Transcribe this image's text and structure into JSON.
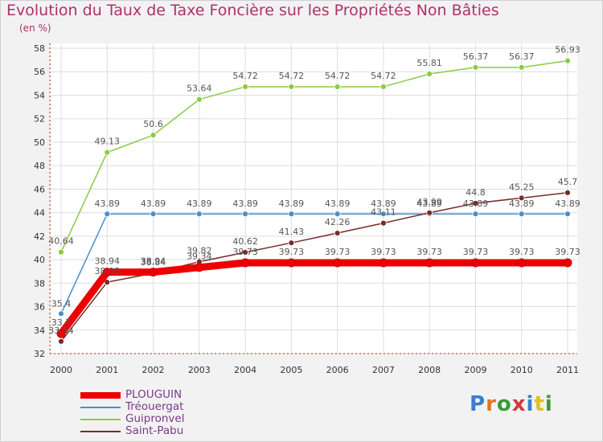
{
  "title": "Evolution du Taux de Taxe Foncière sur les Propriétés Non Bâties",
  "unit_label": "(en %)",
  "logo_text": "Proxiti",
  "chart_data": {
    "type": "line",
    "title": "Evolution du Taux de Taxe Foncière sur les Propriétés Non Bâties",
    "ylabel": "(en %)",
    "categories": [
      "2000",
      "2001",
      "2002",
      "2003",
      "2004",
      "2005",
      "2006",
      "2007",
      "2008",
      "2009",
      "2010",
      "2011"
    ],
    "ylim": [
      32,
      58
    ],
    "yticks": [
      32,
      34,
      36,
      38,
      40,
      42,
      44,
      46,
      48,
      50,
      52,
      54,
      56,
      58
    ],
    "grid": true,
    "legend_position": "bottom-left",
    "series": [
      {
        "name": "Tréouergat",
        "color": "#4a8ec8",
        "values": [
          35.4,
          43.89,
          43.89,
          43.89,
          43.89,
          43.89,
          43.89,
          43.89,
          43.89,
          43.89,
          43.89,
          43.89
        ]
      },
      {
        "name": "Guipronvel",
        "color": "#88cc44",
        "values": [
          40.64,
          49.13,
          50.6,
          53.64,
          54.72,
          54.72,
          54.72,
          54.72,
          55.81,
          56.37,
          56.37,
          56.93
        ]
      },
      {
        "name": "Saint-Pabu",
        "color": "#7a2a2a",
        "values": [
          33.04,
          38.08,
          38.84,
          39.82,
          40.62,
          41.43,
          42.26,
          43.11,
          43.99,
          44.8,
          45.25,
          45.7
        ]
      },
      {
        "name": "PLOUGUIN",
        "color": "#ee0000",
        "values": [
          33.7,
          38.94,
          38.94,
          39.34,
          39.73,
          39.73,
          39.73,
          39.73,
          39.73,
          39.73,
          39.73,
          39.73
        ]
      }
    ],
    "labels": {
      "Tréouergat": [
        "35.4",
        "43.89",
        "43.89",
        "43.89",
        "43.89",
        "43.89",
        "43.89",
        "43.89",
        "43.89",
        "43.89",
        "43.89",
        "43.89"
      ],
      "Guipronvel": [
        "40.64",
        "49.13",
        "50.6",
        "53.64",
        "54.72",
        "54.72",
        "54.72",
        "54.72",
        "55.81",
        "56.37",
        "56.37",
        "56.93"
      ],
      "Saint-Pabu": [
        "33.04",
        "38.08",
        "38.84",
        "39.82",
        "40.62",
        "41.43",
        "42.26",
        "43.11",
        "43.99",
        "44.8",
        "45.25",
        "45.7"
      ],
      "PLOUGUIN": [
        "33.7",
        "38.94",
        "38.94",
        "39.34",
        "39.73",
        "39.73",
        "39.73",
        "39.73",
        "39.73",
        "39.73",
        "39.73",
        "39.73"
      ]
    }
  },
  "legend": [
    {
      "name": "PLOUGUIN",
      "color": "#ee0000"
    },
    {
      "name": "Tréouergat",
      "color": "#4a8ec8"
    },
    {
      "name": "Guipronvel",
      "color": "#88cc44"
    },
    {
      "name": "Saint-Pabu",
      "color": "#7a2a2a"
    }
  ]
}
